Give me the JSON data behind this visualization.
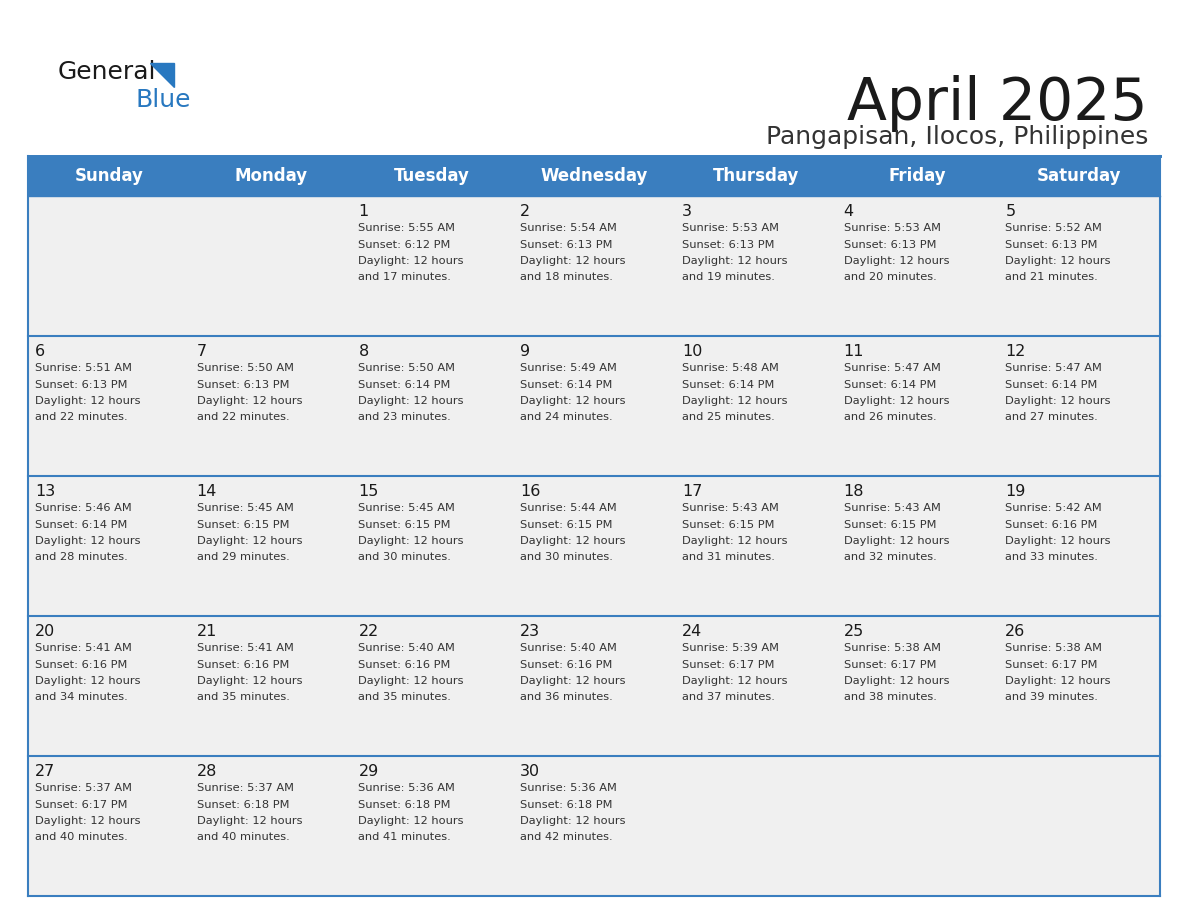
{
  "title": "April 2025",
  "subtitle": "Pangapisan, Ilocos, Philippines",
  "days_of_week": [
    "Sunday",
    "Monday",
    "Tuesday",
    "Wednesday",
    "Thursday",
    "Friday",
    "Saturday"
  ],
  "header_bg": "#3a7ebf",
  "header_text": "#ffffff",
  "row_bg": "#f0f0f0",
  "border_color": "#3a7ebf",
  "title_color": "#1a1a1a",
  "subtitle_color": "#333333",
  "cell_text_color": "#333333",
  "day_num_color": "#1a1a1a",
  "calendar_data": [
    [
      null,
      null,
      {
        "day": 1,
        "sunrise": "5:55 AM",
        "sunset": "6:12 PM",
        "daylight": "12 hours and 17 minutes"
      },
      {
        "day": 2,
        "sunrise": "5:54 AM",
        "sunset": "6:13 PM",
        "daylight": "12 hours and 18 minutes"
      },
      {
        "day": 3,
        "sunrise": "5:53 AM",
        "sunset": "6:13 PM",
        "daylight": "12 hours and 19 minutes"
      },
      {
        "day": 4,
        "sunrise": "5:53 AM",
        "sunset": "6:13 PM",
        "daylight": "12 hours and 20 minutes"
      },
      {
        "day": 5,
        "sunrise": "5:52 AM",
        "sunset": "6:13 PM",
        "daylight": "12 hours and 21 minutes"
      }
    ],
    [
      {
        "day": 6,
        "sunrise": "5:51 AM",
        "sunset": "6:13 PM",
        "daylight": "12 hours and 22 minutes"
      },
      {
        "day": 7,
        "sunrise": "5:50 AM",
        "sunset": "6:13 PM",
        "daylight": "12 hours and 22 minutes"
      },
      {
        "day": 8,
        "sunrise": "5:50 AM",
        "sunset": "6:14 PM",
        "daylight": "12 hours and 23 minutes"
      },
      {
        "day": 9,
        "sunrise": "5:49 AM",
        "sunset": "6:14 PM",
        "daylight": "12 hours and 24 minutes"
      },
      {
        "day": 10,
        "sunrise": "5:48 AM",
        "sunset": "6:14 PM",
        "daylight": "12 hours and 25 minutes"
      },
      {
        "day": 11,
        "sunrise": "5:47 AM",
        "sunset": "6:14 PM",
        "daylight": "12 hours and 26 minutes"
      },
      {
        "day": 12,
        "sunrise": "5:47 AM",
        "sunset": "6:14 PM",
        "daylight": "12 hours and 27 minutes"
      }
    ],
    [
      {
        "day": 13,
        "sunrise": "5:46 AM",
        "sunset": "6:14 PM",
        "daylight": "12 hours and 28 minutes"
      },
      {
        "day": 14,
        "sunrise": "5:45 AM",
        "sunset": "6:15 PM",
        "daylight": "12 hours and 29 minutes"
      },
      {
        "day": 15,
        "sunrise": "5:45 AM",
        "sunset": "6:15 PM",
        "daylight": "12 hours and 30 minutes"
      },
      {
        "day": 16,
        "sunrise": "5:44 AM",
        "sunset": "6:15 PM",
        "daylight": "12 hours and 30 minutes"
      },
      {
        "day": 17,
        "sunrise": "5:43 AM",
        "sunset": "6:15 PM",
        "daylight": "12 hours and 31 minutes"
      },
      {
        "day": 18,
        "sunrise": "5:43 AM",
        "sunset": "6:15 PM",
        "daylight": "12 hours and 32 minutes"
      },
      {
        "day": 19,
        "sunrise": "5:42 AM",
        "sunset": "6:16 PM",
        "daylight": "12 hours and 33 minutes"
      }
    ],
    [
      {
        "day": 20,
        "sunrise": "5:41 AM",
        "sunset": "6:16 PM",
        "daylight": "12 hours and 34 minutes"
      },
      {
        "day": 21,
        "sunrise": "5:41 AM",
        "sunset": "6:16 PM",
        "daylight": "12 hours and 35 minutes"
      },
      {
        "day": 22,
        "sunrise": "5:40 AM",
        "sunset": "6:16 PM",
        "daylight": "12 hours and 35 minutes"
      },
      {
        "day": 23,
        "sunrise": "5:40 AM",
        "sunset": "6:16 PM",
        "daylight": "12 hours and 36 minutes"
      },
      {
        "day": 24,
        "sunrise": "5:39 AM",
        "sunset": "6:17 PM",
        "daylight": "12 hours and 37 minutes"
      },
      {
        "day": 25,
        "sunrise": "5:38 AM",
        "sunset": "6:17 PM",
        "daylight": "12 hours and 38 minutes"
      },
      {
        "day": 26,
        "sunrise": "5:38 AM",
        "sunset": "6:17 PM",
        "daylight": "12 hours and 39 minutes"
      }
    ],
    [
      {
        "day": 27,
        "sunrise": "5:37 AM",
        "sunset": "6:17 PM",
        "daylight": "12 hours and 40 minutes"
      },
      {
        "day": 28,
        "sunrise": "5:37 AM",
        "sunset": "6:18 PM",
        "daylight": "12 hours and 40 minutes"
      },
      {
        "day": 29,
        "sunrise": "5:36 AM",
        "sunset": "6:18 PM",
        "daylight": "12 hours and 41 minutes"
      },
      {
        "day": 30,
        "sunrise": "5:36 AM",
        "sunset": "6:18 PM",
        "daylight": "12 hours and 42 minutes"
      },
      null,
      null,
      null
    ]
  ],
  "figsize": [
    11.88,
    9.18
  ],
  "dpi": 100
}
